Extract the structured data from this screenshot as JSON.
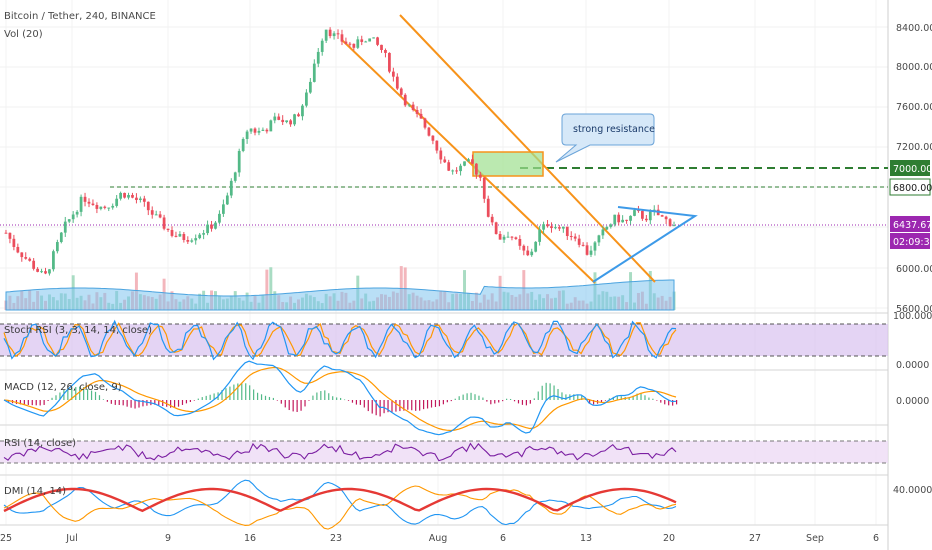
{
  "chart_data": {
    "type": "candlestick",
    "title": "Bitcoin / Tether, 240, BINANCE",
    "volume_label": "Vol (20)",
    "price_axis": {
      "ticks": [
        "8400.00",
        "8000.00",
        "7600.00",
        "7200.00",
        "6000.00",
        "5600.00"
      ],
      "ylim": [
        5600,
        8500
      ]
    },
    "x_ticks": [
      "25",
      "Jul",
      "9",
      "16",
      "23",
      "Aug",
      "6",
      "13",
      "20",
      "27",
      "Sep",
      "6"
    ],
    "price_tags": {
      "resistance": "7000.00",
      "support": "6800.00",
      "current_price": "6437.67",
      "countdown": "02:09:37"
    },
    "annotation": "strong resistance",
    "close_series_approx": [
      6350,
      6200,
      6100,
      6000,
      5900,
      6150,
      6400,
      6550,
      6700,
      6650,
      6600,
      6650,
      6750,
      6700,
      6650,
      6550,
      6450,
      6350,
      6300,
      6300,
      6350,
      6400,
      6500,
      6750,
      7100,
      7400,
      7350,
      7400,
      7500,
      7450,
      7500,
      7700,
      8100,
      8400,
      8300,
      8250,
      8200,
      8300,
      8250,
      8150,
      7900,
      7700,
      7550,
      7450,
      7300,
      7100,
      6950,
      7000,
      7050,
      6900,
      6450,
      6300,
      6350,
      6200,
      6100,
      6350,
      6450,
      6400,
      6350,
      6300,
      6150,
      6250,
      6400,
      6500,
      6450,
      6550,
      6500,
      6550,
      6480,
      6440
    ],
    "panes": [
      {
        "name": "Stoch RSI (3, 3, 14, 14, close)",
        "ticks": [
          "100.0000",
          "0.0000"
        ],
        "ylim": [
          0,
          100
        ]
      },
      {
        "name": "MACD (12, 26, close, 9)",
        "ticks": [
          "0.0000"
        ]
      },
      {
        "name": "RSI (14, close)",
        "ticks": []
      },
      {
        "name": "DMI (14, 14)",
        "ticks": [
          "40.0000"
        ]
      }
    ],
    "colors": {
      "up": "#53b987",
      "down": "#eb4d5c",
      "channel": "#f7931a",
      "triangle": "#3d9ae8",
      "resistance": "#2e7d32",
      "current": "#9c27b0",
      "stoch_k": "#2196f3",
      "stoch_d": "#ff9800",
      "rsi": "#7b1fa2",
      "dmi_adx": "#e53935"
    }
  }
}
